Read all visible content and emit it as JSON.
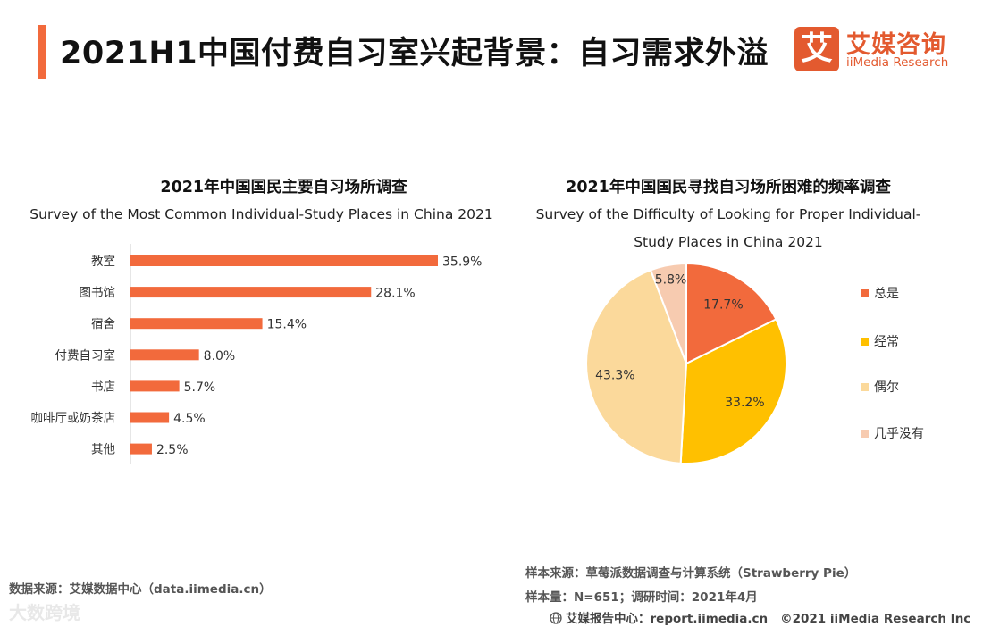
{
  "header": {
    "title": "2021H1中国付费自习室兴起背景：自习需求外溢",
    "accent_color": "#f26a3c"
  },
  "logo": {
    "mark": "艾",
    "name_cn": "艾媒咨询",
    "name_en": "iiMedia Research",
    "color": "#e35a2f"
  },
  "chart_data": [
    {
      "type": "bar",
      "orientation": "horizontal",
      "title": "2021年中国国民主要自习场所调查",
      "subtitle": "Survey of the Most Common Individual-Study Places in China 2021",
      "categories": [
        "教室",
        "图书馆",
        "宿舍",
        "付费自习室",
        "书店",
        "咖啡厅或奶茶店",
        "其他"
      ],
      "values": [
        35.9,
        28.1,
        15.4,
        8.0,
        5.7,
        4.5,
        2.5
      ],
      "value_labels": [
        "35.9%",
        "28.1%",
        "15.4%",
        "8.0%",
        "5.7%",
        "4.5%",
        "2.5%"
      ],
      "unit": "%",
      "xlim": [
        0,
        35.9
      ],
      "bar_color": "#f26a3c"
    },
    {
      "type": "pie",
      "title": "2021年中国国民寻找自习场所困难的频率调查",
      "subtitle_line1": "Survey of the Difficulty of Looking for Proper Individual-",
      "subtitle_line2": "Study Places in China 2021",
      "labels": [
        "总是",
        "经常",
        "偶尔",
        "几乎没有"
      ],
      "values": [
        17.7,
        33.2,
        43.3,
        5.8
      ],
      "value_labels": [
        "17.7%",
        "33.2%",
        "43.3%",
        "5.8%"
      ],
      "colors": [
        "#f26a3c",
        "#ffc000",
        "#fbd99b",
        "#f7cbb0"
      ],
      "legend": "right"
    }
  ],
  "footer": {
    "source": "数据来源：艾媒数据中心（data.iimedia.cn）",
    "sample_source": "样本来源：草莓派数据调查与计算系统（Strawberry Pie）",
    "sample_size": "样本量：N=651；调研时间：2021年4月",
    "report_center": "艾媒报告中心：report.iimedia.cn",
    "copyright": "©2021  iiMedia Research  Inc",
    "watermark": "大数跨境"
  }
}
